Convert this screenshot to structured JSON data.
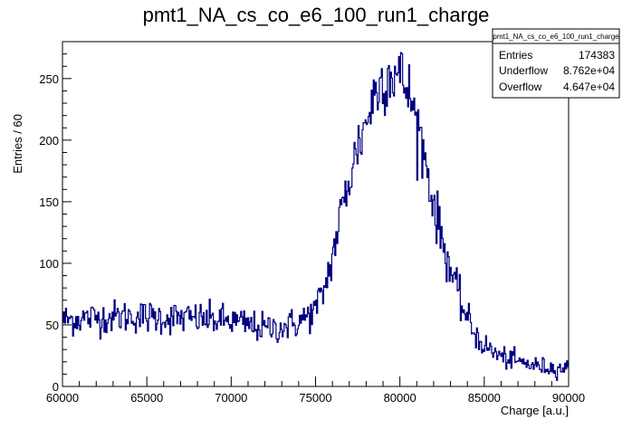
{
  "chart_data": {
    "type": "histogram",
    "title": "pmt1_NA_cs_co_e6_100_run1_charge",
    "xlabel": "Charge [a.u.]",
    "ylabel": "Entries / 60",
    "xlim": [
      60000,
      90000
    ],
    "ylim": [
      0,
      280
    ],
    "x_ticks": [
      60000,
      65000,
      70000,
      75000,
      80000,
      85000,
      90000
    ],
    "y_ticks": [
      0,
      50,
      100,
      150,
      200,
      250
    ],
    "bin_width": 60,
    "line_color": "#000080",
    "envelope": {
      "x": [
        60000,
        62000,
        64000,
        66000,
        68000,
        70000,
        72000,
        73000,
        74000,
        75000,
        75500,
        76000,
        76500,
        77000,
        77500,
        78000,
        78500,
        79000,
        79500,
        80000,
        80500,
        81000,
        81500,
        82000,
        82500,
        83000,
        83500,
        84000,
        84500,
        85000,
        86000,
        87000,
        88000,
        89000,
        90000
      ],
      "y": [
        54,
        56,
        57,
        56,
        55,
        53,
        47,
        48,
        52,
        62,
        78,
        105,
        140,
        168,
        195,
        215,
        237,
        250,
        255,
        252,
        240,
        215,
        185,
        148,
        120,
        95,
        72,
        55,
        42,
        33,
        24,
        20,
        17,
        15,
        15
      ]
    },
    "stats_box": {
      "title": "pmt1_NA_cs_co_e6_100_run1_charge",
      "rows": [
        {
          "label": "Entries",
          "value": "174383"
        },
        {
          "label": "Underflow",
          "value": "8.762e+04"
        },
        {
          "label": "Overflow",
          "value": "4.647e+04"
        }
      ]
    }
  }
}
